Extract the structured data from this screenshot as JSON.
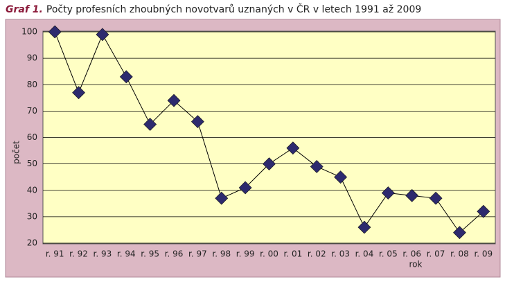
{
  "chart_data": {
    "type": "line",
    "title_label": "Graf 1.",
    "title": "Počty profesních zhoubných novotvarů uznaných v ČR v letech 1991 až 2009",
    "x_label": "rok",
    "y_label": "počet",
    "categories": [
      "r. 91",
      "r. 92",
      "r. 93",
      "r. 94",
      "r. 95",
      "r. 96",
      "r. 97",
      "r. 98",
      "r. 99",
      "r. 00",
      "r. 01",
      "r. 02",
      "r. 03",
      "r. 04",
      "r. 05",
      "r. 06",
      "r. 07",
      "r. 08",
      "r. 09"
    ],
    "values": [
      100,
      77,
      99,
      83,
      65,
      74,
      66,
      37,
      41,
      50,
      56,
      49,
      45,
      26,
      39,
      38,
      37,
      24,
      32
    ],
    "color": "#2d2a6e",
    "line_color": "#000000",
    "ylim": [
      20,
      100
    ],
    "yticks": [
      20,
      30,
      40,
      50,
      60,
      70,
      80,
      90,
      100
    ],
    "grid": true
  }
}
